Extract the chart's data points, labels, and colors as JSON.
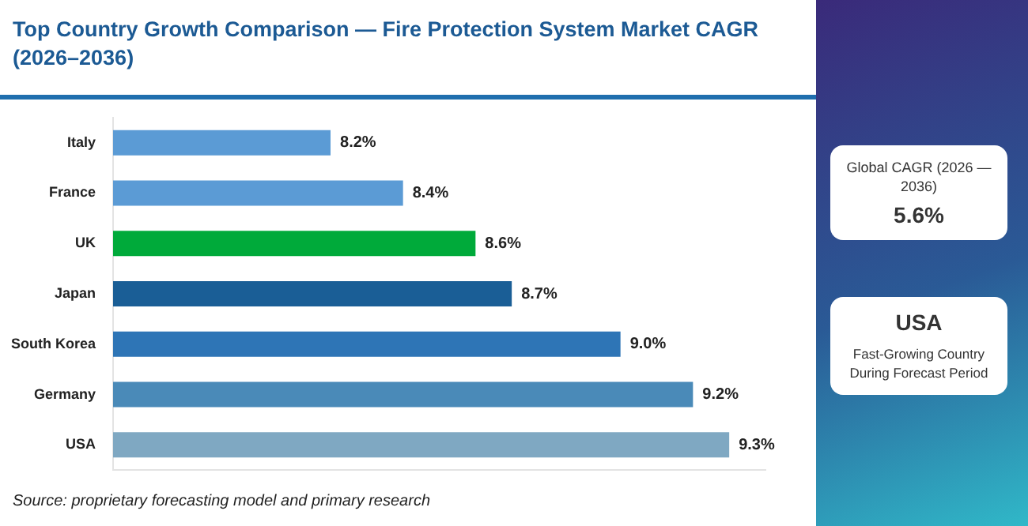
{
  "chart_data": {
    "type": "bar",
    "orientation": "horizontal",
    "title": "Top Country Growth Comparison — Fire Protection System Market CAGR (2026–2036)",
    "categories": [
      "Italy",
      "France",
      "UK",
      "Japan",
      "South Korea",
      "Germany",
      "USA"
    ],
    "values": [
      8.2,
      8.4,
      8.6,
      8.7,
      9.0,
      9.2,
      9.3
    ],
    "colors": [
      "#5b9bd5",
      "#5b9bd5",
      "#00aa3a",
      "#1a5e96",
      "#2e75b6",
      "#4a8ab8",
      "#7fa8c2"
    ],
    "value_labels": [
      "8.2%",
      "8.4%",
      "8.6%",
      "8.7%",
      "9.0%",
      "9.2%",
      "9.3%"
    ],
    "xlim": [
      7.6,
      9.4
    ],
    "tick_labels": "y",
    "grid": false,
    "legend": false,
    "annotations": [
      "Global CAGR (2026 — 2036)",
      "5.6%",
      "USA",
      "Fast-Growing Country During Forecast Period",
      "Source: proprietary forecasting model and primary research"
    ]
  }
}
